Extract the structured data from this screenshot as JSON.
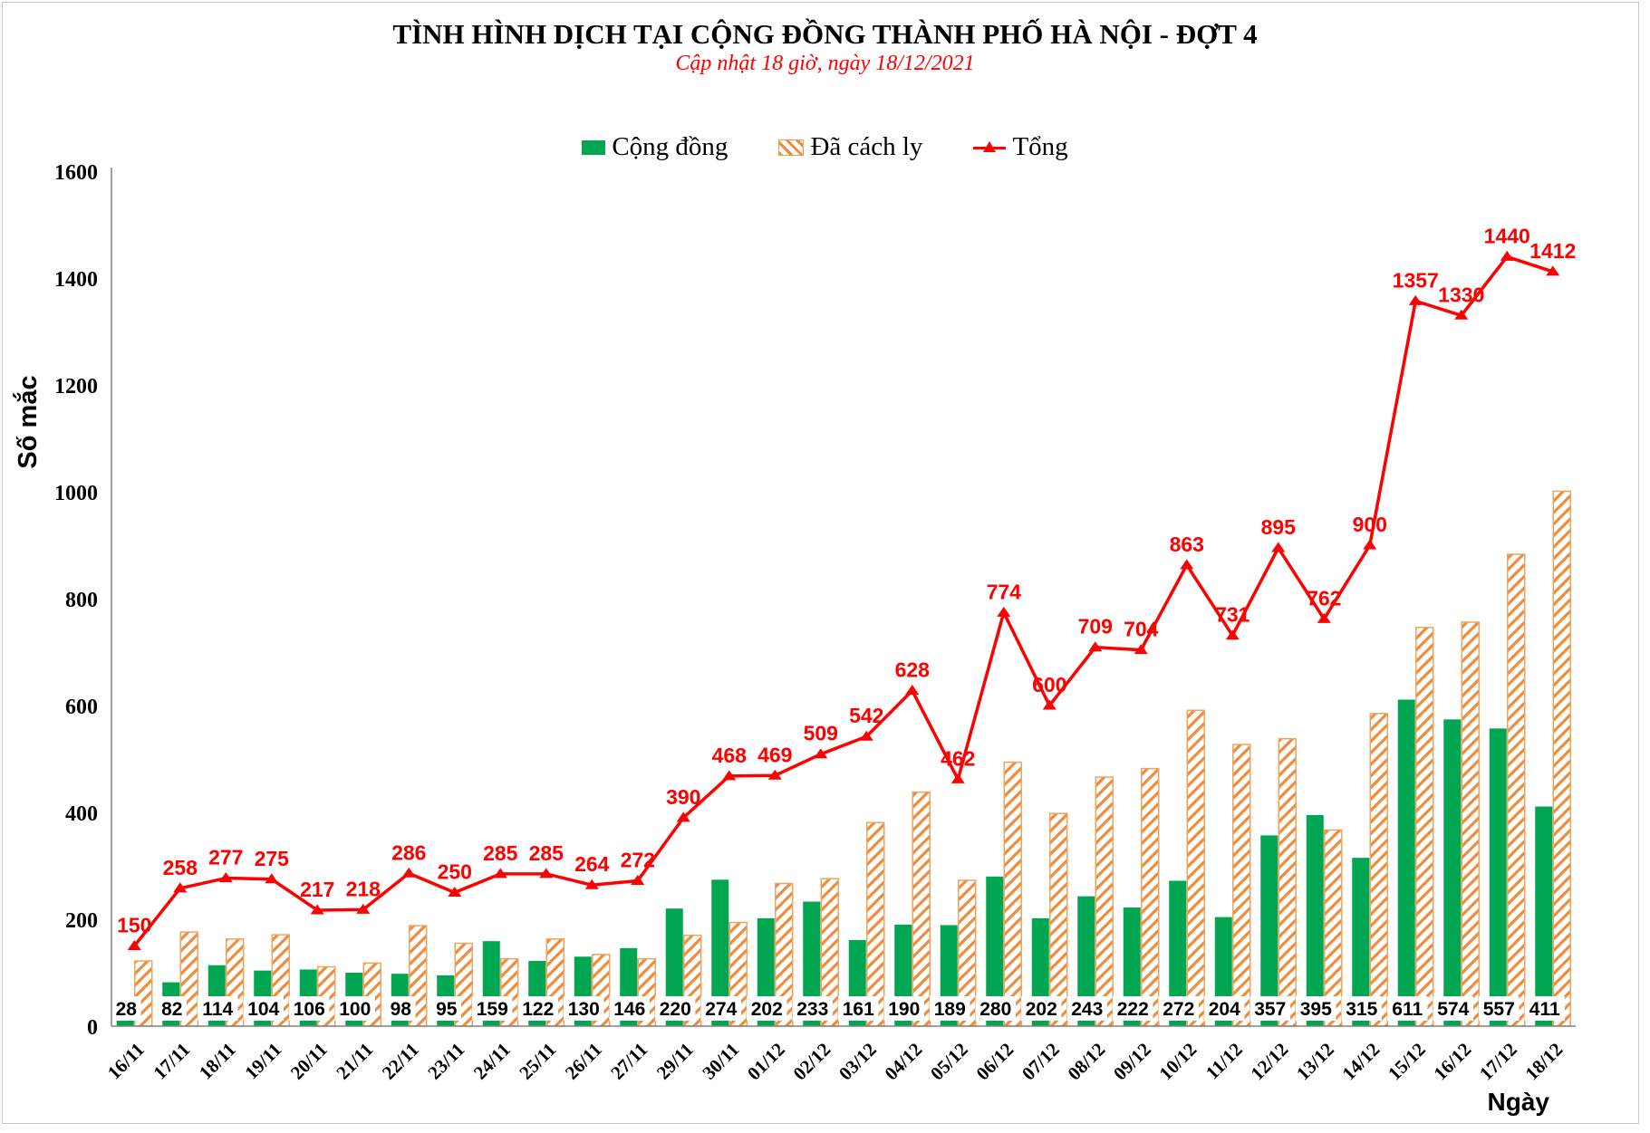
{
  "title": "TÌNH HÌNH DỊCH TẠI CỘNG ĐỒNG THÀNH PHỐ HÀ NỘI - ĐỢT 4",
  "subtitle": "Cập nhật 18 giờ, ngày 18/12/2021",
  "legend": [
    {
      "label": "Cộng đồng",
      "swatch": "solid-green",
      "color": "#00A651"
    },
    {
      "label": "Đã cách ly",
      "swatch": "orange-hatch",
      "color": "#ED8C3D"
    },
    {
      "label": "Tổng",
      "swatch": "red-line-triangle",
      "color": "#FF0000"
    }
  ],
  "axes": {
    "y_title": "Số mắc",
    "x_title": "Ngày",
    "y_ticks": [
      0,
      200,
      400,
      600,
      800,
      1000,
      1200,
      1400,
      1600
    ]
  },
  "chart_data": {
    "type": "bar",
    "subtype": "clustered bars + line overlay",
    "title": "TÌNH HÌNH DỊCH TẠI CỘNG ĐỒNG THÀNH PHỐ HÀ NỘI - ĐỢT 4",
    "subtitle": "Cập nhật 18 giờ, ngày 18/12/2021",
    "xlabel": "Ngày",
    "ylabel": "Số mắc",
    "ylim": [
      0,
      1600
    ],
    "grid": false,
    "legend_position": "top",
    "categories": [
      "16/11",
      "17/11",
      "18/11",
      "19/11",
      "20/11",
      "21/11",
      "22/11",
      "23/11",
      "24/11",
      "25/11",
      "26/11",
      "27/11",
      "29/11",
      "30/11",
      "01/12",
      "02/12",
      "03/12",
      "04/12",
      "05/12",
      "06/12",
      "07/12",
      "08/12",
      "09/12",
      "10/12",
      "11/12",
      "12/12",
      "13/12",
      "14/12",
      "15/12",
      "16/12",
      "17/12",
      "18/12"
    ],
    "series": [
      {
        "name": "Cộng đồng",
        "type": "bar",
        "style": "solid",
        "color": "#00A651",
        "labels_shown": true,
        "values": [
          28,
          82,
          114,
          104,
          106,
          100,
          98,
          95,
          159,
          122,
          130,
          146,
          220,
          274,
          202,
          233,
          161,
          190,
          189,
          280,
          202,
          243,
          222,
          272,
          204,
          357,
          395,
          315,
          611,
          574,
          557,
          411
        ]
      },
      {
        "name": "Đã cách ly",
        "type": "bar",
        "style": "hatch",
        "color": "#ED8C3D",
        "labels_shown": false,
        "values": [
          122,
          176,
          163,
          171,
          111,
          118,
          188,
          155,
          126,
          163,
          134,
          126,
          170,
          194,
          267,
          276,
          381,
          438,
          273,
          494,
          398,
          466,
          482,
          591,
          527,
          538,
          367,
          585,
          746,
          756,
          883,
          1001
        ]
      },
      {
        "name": "Tổng",
        "type": "line",
        "marker": "triangle-up",
        "color": "#FF0000",
        "labels_shown": true,
        "values": [
          150,
          258,
          277,
          275,
          217,
          218,
          286,
          250,
          285,
          285,
          264,
          272,
          390,
          468,
          469,
          509,
          542,
          628,
          462,
          774,
          600,
          709,
          704,
          863,
          731,
          895,
          762,
          900,
          1357,
          1330,
          1440,
          1412
        ]
      }
    ]
  }
}
